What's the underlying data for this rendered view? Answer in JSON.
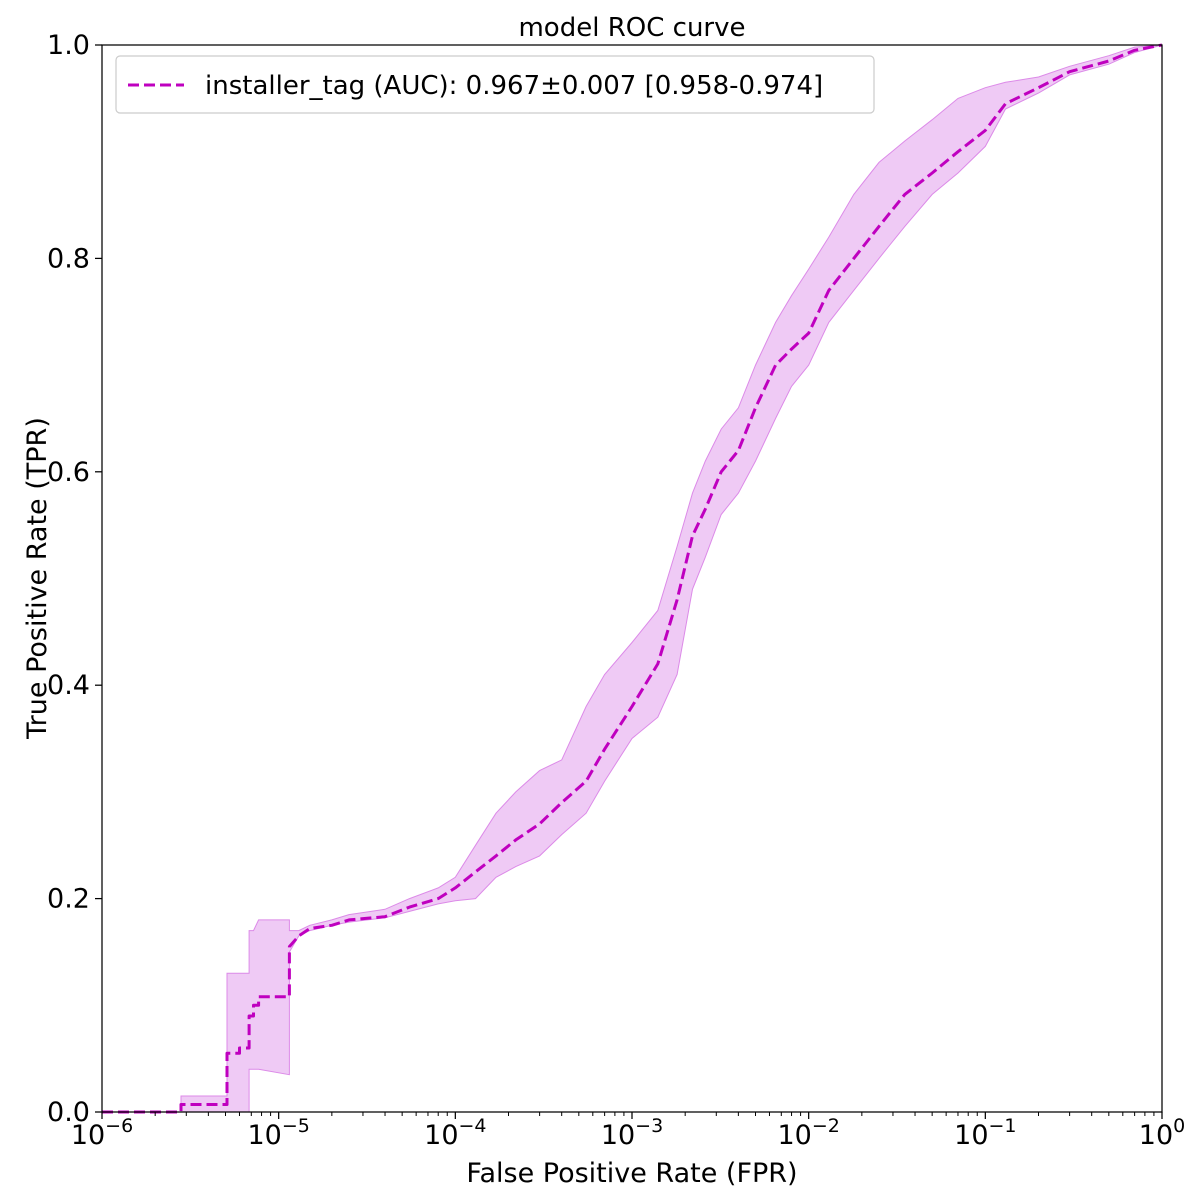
{
  "chart_data": {
    "type": "line",
    "title": "model ROC curve",
    "xlabel": "False Positive Rate (FPR)",
    "ylabel": "True Positive Rate (TPR)",
    "xscale": "log",
    "xlim": [
      1e-06,
      1
    ],
    "ylim": [
      0,
      1
    ],
    "grid": false,
    "legend_position": "top-left",
    "x_ticks": [
      {
        "value": 1e-06,
        "base": "10",
        "exp": "−6"
      },
      {
        "value": 1e-05,
        "base": "10",
        "exp": "−5"
      },
      {
        "value": 0.0001,
        "base": "10",
        "exp": "−4"
      },
      {
        "value": 0.001,
        "base": "10",
        "exp": "−3"
      },
      {
        "value": 0.01,
        "base": "10",
        "exp": "−2"
      },
      {
        "value": 0.1,
        "base": "10",
        "exp": "−1"
      },
      {
        "value": 1,
        "base": "10",
        "exp": "0"
      }
    ],
    "y_ticks": [
      {
        "value": 0.0,
        "label": "0.0"
      },
      {
        "value": 0.2,
        "label": "0.2"
      },
      {
        "value": 0.4,
        "label": "0.4"
      },
      {
        "value": 0.6,
        "label": "0.6"
      },
      {
        "value": 0.8,
        "label": "0.8"
      },
      {
        "value": 1.0,
        "label": "1.0"
      }
    ],
    "series": [
      {
        "name": "installer_tag (AUC): 0.967±0.007 [0.958-0.974]",
        "color": "#bf00bf",
        "band_color": "#dc8ae8",
        "line_style": "dashed",
        "x": [
          1e-06,
          2.8e-06,
          2.8e-06,
          5.1e-06,
          5.1e-06,
          6e-06,
          6e-06,
          6.8e-06,
          6.8e-06,
          7.2e-06,
          7.2e-06,
          7.7e-06,
          7.7e-06,
          1.15e-05,
          1.15e-05,
          1.3e-05,
          1.5e-05,
          2e-05,
          2.5e-05,
          4e-05,
          5.5e-05,
          8e-05,
          0.0001,
          0.00013,
          0.00017,
          0.00022,
          0.0003,
          0.0004,
          0.00055,
          0.0007,
          0.001,
          0.0014,
          0.0018,
          0.0022,
          0.0026,
          0.0032,
          0.004,
          0.005,
          0.0065,
          0.008,
          0.01,
          0.013,
          0.018,
          0.025,
          0.035,
          0.05,
          0.07,
          0.1,
          0.13,
          0.2,
          0.3,
          0.5,
          0.7,
          1
        ],
        "y": [
          0.0,
          0.0,
          0.007,
          0.007,
          0.055,
          0.055,
          0.06,
          0.06,
          0.09,
          0.09,
          0.1,
          0.1,
          0.108,
          0.108,
          0.155,
          0.165,
          0.172,
          0.175,
          0.18,
          0.183,
          0.192,
          0.2,
          0.21,
          0.225,
          0.24,
          0.255,
          0.27,
          0.29,
          0.31,
          0.34,
          0.38,
          0.42,
          0.48,
          0.54,
          0.565,
          0.6,
          0.62,
          0.66,
          0.7,
          0.715,
          0.73,
          0.77,
          0.8,
          0.83,
          0.86,
          0.88,
          0.9,
          0.92,
          0.945,
          0.96,
          0.975,
          0.985,
          0.995,
          1.0
        ],
        "lower": [
          0.0,
          0.0,
          0.0,
          0.0,
          0.0,
          0.0,
          0.0,
          0.0,
          0.04,
          0.04,
          0.04,
          0.04,
          0.04,
          0.035,
          0.15,
          0.165,
          0.17,
          0.175,
          0.178,
          0.182,
          0.188,
          0.195,
          0.198,
          0.2,
          0.22,
          0.23,
          0.24,
          0.26,
          0.28,
          0.31,
          0.35,
          0.37,
          0.41,
          0.49,
          0.52,
          0.56,
          0.58,
          0.61,
          0.65,
          0.68,
          0.7,
          0.74,
          0.77,
          0.8,
          0.83,
          0.86,
          0.88,
          0.905,
          0.94,
          0.955,
          0.972,
          0.982,
          0.993,
          1.0
        ],
        "upper": [
          0.0,
          0.0,
          0.015,
          0.015,
          0.13,
          0.13,
          0.13,
          0.13,
          0.17,
          0.17,
          0.17,
          0.18,
          0.18,
          0.18,
          0.17,
          0.17,
          0.175,
          0.18,
          0.185,
          0.19,
          0.2,
          0.21,
          0.22,
          0.25,
          0.28,
          0.3,
          0.32,
          0.33,
          0.38,
          0.41,
          0.44,
          0.47,
          0.53,
          0.58,
          0.61,
          0.64,
          0.66,
          0.7,
          0.74,
          0.765,
          0.79,
          0.82,
          0.86,
          0.89,
          0.91,
          0.93,
          0.95,
          0.96,
          0.965,
          0.97,
          0.98,
          0.99,
          0.998,
          1.0
        ]
      }
    ]
  }
}
